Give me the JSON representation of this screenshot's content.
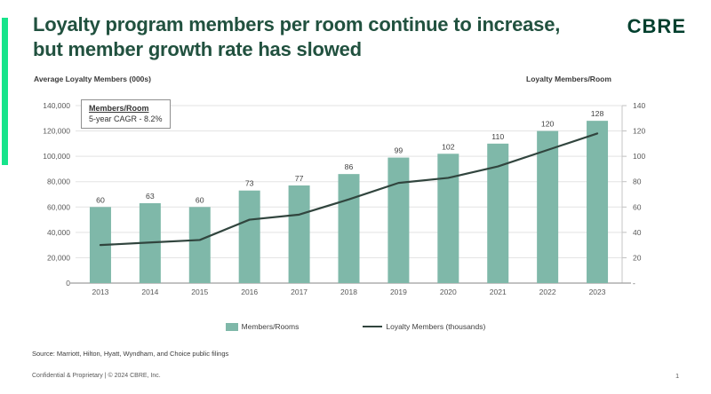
{
  "header": {
    "title_line1": "Loyalty program members per room continue to increase,",
    "title_line2": "but member growth rate has slowed",
    "logo": "CBRE"
  },
  "colors": {
    "accent_green": "#17e48b",
    "brand_green": "#003f2d",
    "title_green": "#21513f",
    "bar_teal": "#7fb8a9",
    "line_dark": "#31453e"
  },
  "chart_data": {
    "type": "bar",
    "title": "Loyalty program members per room continue to increase, but member growth rate has slowed",
    "categories": [
      "2013",
      "2014",
      "2015",
      "2016",
      "2017",
      "2018",
      "2019",
      "2020",
      "2021",
      "2022",
      "2023"
    ],
    "series": [
      {
        "name": "Members/Rooms",
        "type": "bar",
        "axis": "right",
        "color": "#7fb8a9",
        "values": [
          60,
          63,
          60,
          73,
          77,
          86,
          99,
          102,
          110,
          120,
          128
        ],
        "data_labels": [
          "60",
          "63",
          "60",
          "73",
          "77",
          "86",
          "99",
          "102",
          "110",
          "120",
          "128"
        ]
      },
      {
        "name": "Loyalty Members (thousands)",
        "type": "line",
        "axis": "left",
        "color": "#31453e",
        "values": [
          30000,
          32000,
          34000,
          50000,
          54000,
          66000,
          79000,
          83000,
          92000,
          105000,
          118000
        ]
      }
    ],
    "left_axis": {
      "title": "Average Loyalty Members (000s)",
      "min": 0,
      "max": 140000,
      "tick_labels": [
        "0",
        "20,000",
        "40,000",
        "60,000",
        "80,000",
        "100,000",
        "120,000",
        "140,000"
      ]
    },
    "right_axis": {
      "title": "Loyalty Members/Room",
      "min": 0,
      "max": 140,
      "tick_labels": [
        "-",
        "20",
        "40",
        "60",
        "80",
        "100",
        "120",
        "140"
      ]
    },
    "annotation": {
      "line1": "Members/Room",
      "line2": "5-year CAGR - 8.2%"
    },
    "legend": [
      {
        "label": "Members/Rooms",
        "swatch": "bar"
      },
      {
        "label": "Loyalty Members (thousands)",
        "swatch": "line"
      }
    ],
    "grid": true,
    "legend_position": "bottom-center"
  },
  "footer": {
    "source": "Source: Marriott, Hilton, Hyatt, Wyndham, and Choice public filings",
    "confidential": "Confidential & Proprietary | © 2024 CBRE, Inc.",
    "page_number": "1"
  }
}
